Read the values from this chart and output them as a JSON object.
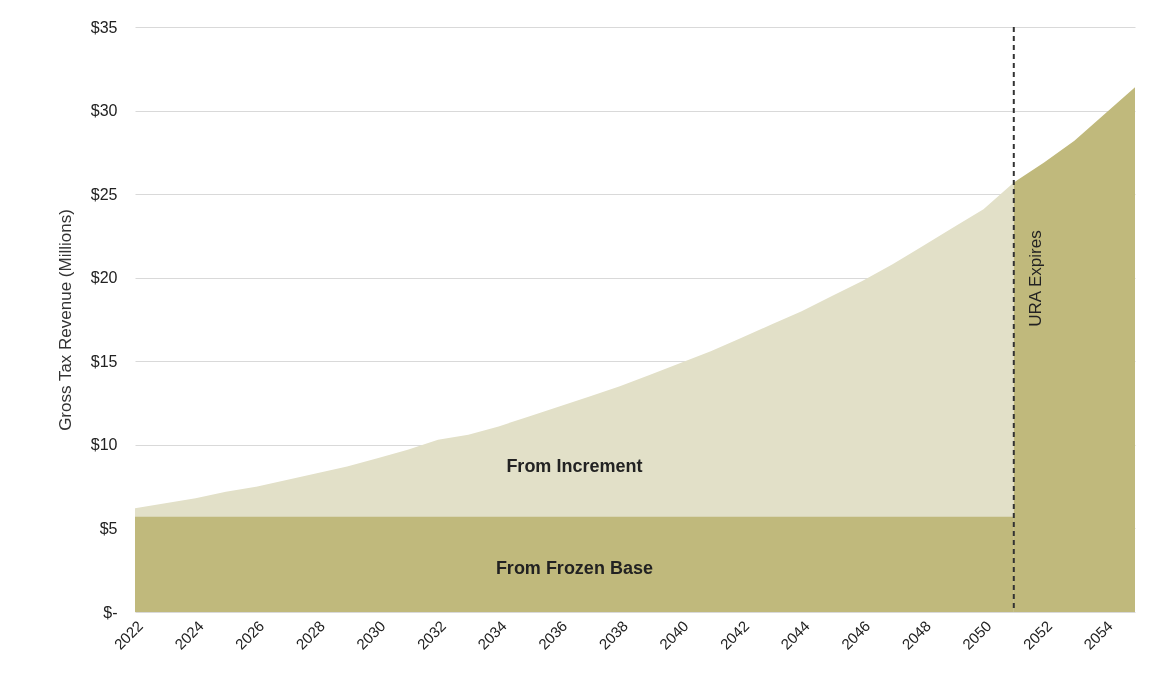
{
  "chart_data": {
    "type": "area",
    "ylabel": "Gross Tax Revenue (Millions)",
    "xlim": [
      2022,
      2055
    ],
    "xticks": [
      2022,
      2024,
      2026,
      2028,
      2030,
      2032,
      2034,
      2036,
      2038,
      2040,
      2042,
      2044,
      2046,
      2048,
      2050,
      2052,
      2054
    ],
    "ylim": [
      0,
      35
    ],
    "yticks": [
      {
        "value": 0,
        "label": "$-"
      },
      {
        "value": 5,
        "label": "$5"
      },
      {
        "value": 10,
        "label": "$10"
      },
      {
        "value": 15,
        "label": "$15"
      },
      {
        "value": 20,
        "label": "$20"
      },
      {
        "value": 25,
        "label": "$25"
      },
      {
        "value": 30,
        "label": "$30"
      },
      {
        "value": 35,
        "label": "$35"
      }
    ],
    "grid": "y",
    "series": [
      {
        "name": "From Increment",
        "color": "#e2e0c8",
        "x": [
          2022,
          2023,
          2024,
          2025,
          2026,
          2027,
          2028,
          2029,
          2030,
          2031,
          2032,
          2033,
          2034,
          2035,
          2036,
          2037,
          2038,
          2039,
          2040,
          2041,
          2042,
          2043,
          2044,
          2045,
          2046,
          2047,
          2048,
          2049,
          2050,
          2051
        ],
        "values": [
          6.2,
          6.5,
          6.8,
          7.2,
          7.5,
          7.9,
          8.3,
          8.7,
          9.2,
          9.7,
          10.3,
          10.6,
          11.1,
          11.7,
          12.3,
          12.9,
          13.5,
          14.2,
          14.9,
          15.6,
          16.4,
          17.2,
          18.0,
          18.9,
          19.8,
          20.8,
          21.9,
          23.0,
          24.1,
          25.7
        ]
      },
      {
        "name": "From Frozen Base",
        "color": "#c0b97c",
        "x": [
          2022,
          2051
        ],
        "values": [
          5.7,
          5.7
        ]
      },
      {
        "color": "#c0b97c",
        "x": [
          2051,
          2052,
          2053,
          2054,
          2055
        ],
        "values": [
          25.7,
          26.9,
          28.2,
          29.8,
          31.4
        ]
      }
    ],
    "ref_lines": [
      {
        "axis": "x",
        "value": 2051,
        "label": "URA Expires",
        "color": "#333333",
        "line_style": "dashed"
      }
    ]
  }
}
